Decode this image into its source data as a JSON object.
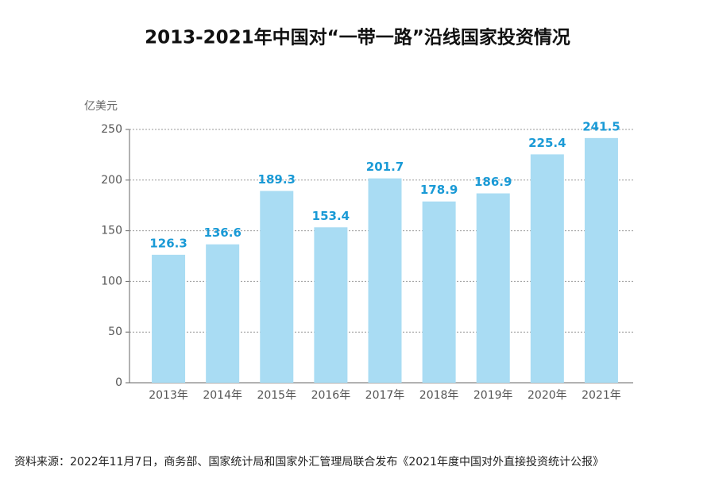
{
  "chart_data": {
    "type": "bar",
    "title": "2013-2021年中国对“一带一路”沿线国家投资情况",
    "y_axis_label": "亿美元",
    "categories": [
      "2013年",
      "2014年",
      "2015年",
      "2016年",
      "2017年",
      "2018年",
      "2019年",
      "2020年",
      "2021年"
    ],
    "values": [
      126.3,
      136.6,
      189.3,
      153.4,
      201.7,
      178.9,
      186.9,
      225.4,
      241.5
    ],
    "color": "#a9dcf3",
    "value_label_color": "#1a9ad6",
    "ylim": [
      0,
      250
    ],
    "yticks": [
      0,
      50,
      100,
      150,
      200,
      250
    ],
    "grid": true,
    "source": "资料来源：2022年11月7日，商务部、国家统计局和国家外汇管理局联合发布《2021年度中国对外直接投资统计公报》"
  }
}
